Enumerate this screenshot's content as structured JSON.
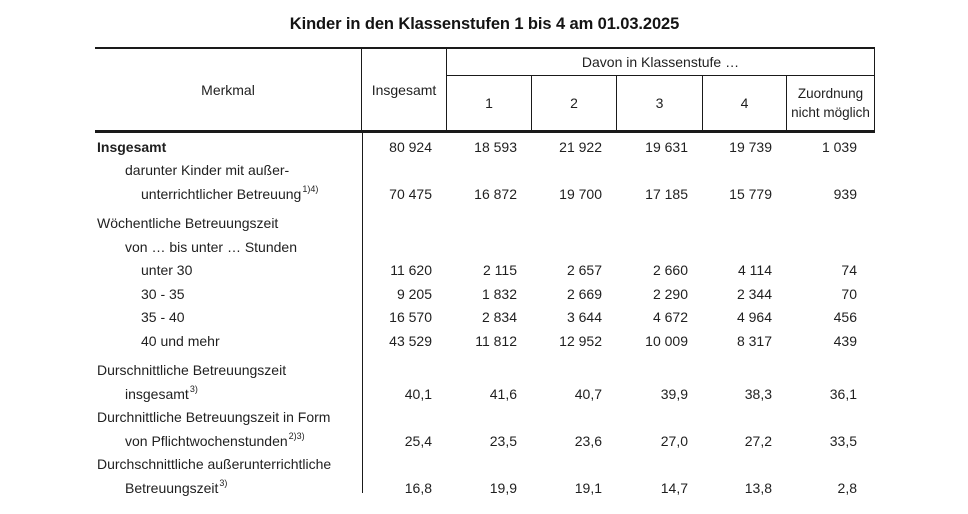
{
  "title": "Kinder in den Klassenstufen 1 bis 4 am 01.03.2025",
  "header": {
    "merkmal": "Merkmal",
    "insgesamt": "Insgesamt",
    "davon_label": "Davon in Klassenstufe …",
    "class_columns": [
      "1",
      "2",
      "3",
      "4"
    ],
    "zuordnung": "Zuordnung nicht möglich"
  },
  "table": {
    "rows": [
      {
        "label": "Insgesamt",
        "indent": 0,
        "bold": true,
        "values": [
          "80 924",
          "18 593",
          "21 922",
          "19 631",
          "19 739",
          "1 039"
        ]
      },
      {
        "label": "darunter Kinder mit außer-",
        "indent": 1
      },
      {
        "label": "unterrichtlicher Betreuung",
        "sup": "1)4)",
        "indent": 2,
        "values": [
          "70 475",
          "16 872",
          "19 700",
          "17 185",
          "15 779",
          "939"
        ]
      },
      {
        "spacer": true
      },
      {
        "label": "Wöchentliche Betreuungszeit",
        "indent": 0
      },
      {
        "label": "von … bis unter … Stunden",
        "indent": 1
      },
      {
        "label": "unter 30",
        "indent": 2,
        "values": [
          "11 620",
          "2 115",
          "2 657",
          "2 660",
          "4 114",
          "74"
        ]
      },
      {
        "label": "30 - 35",
        "indent": 2,
        "values": [
          "9 205",
          "1 832",
          "2 669",
          "2 290",
          "2 344",
          "70"
        ]
      },
      {
        "label": "35 - 40",
        "indent": 2,
        "values": [
          "16 570",
          "2 834",
          "3 644",
          "4 672",
          "4 964",
          "456"
        ]
      },
      {
        "label": "40 und mehr",
        "indent": 2,
        "values": [
          "43 529",
          "11 812",
          "12 952",
          "10 009",
          "8 317",
          "439"
        ]
      },
      {
        "spacer": true
      },
      {
        "label": "Durschnittliche Betreuungszeit",
        "indent": 0
      },
      {
        "label": "insgesamt",
        "sup": "3)",
        "indent": 1,
        "values": [
          "40,1",
          "41,6",
          "40,7",
          "39,9",
          "38,3",
          "36,1"
        ]
      },
      {
        "label": "Durchnittliche Betreuungszeit in Form",
        "indent": 0
      },
      {
        "label": "von Pflichtwochenstunden",
        "sup": "2)3)",
        "indent": 1,
        "values": [
          "25,4",
          "23,5",
          "23,6",
          "27,0",
          "27,2",
          "33,5"
        ]
      },
      {
        "label": "Durchschnittliche außerunterrichtliche",
        "indent": 0
      },
      {
        "label": "Betreuungszeit",
        "sup": "3)",
        "indent": 1,
        "values": [
          "16,8",
          "19,9",
          "19,1",
          "14,7",
          "13,8",
          "2,8"
        ]
      }
    ]
  }
}
